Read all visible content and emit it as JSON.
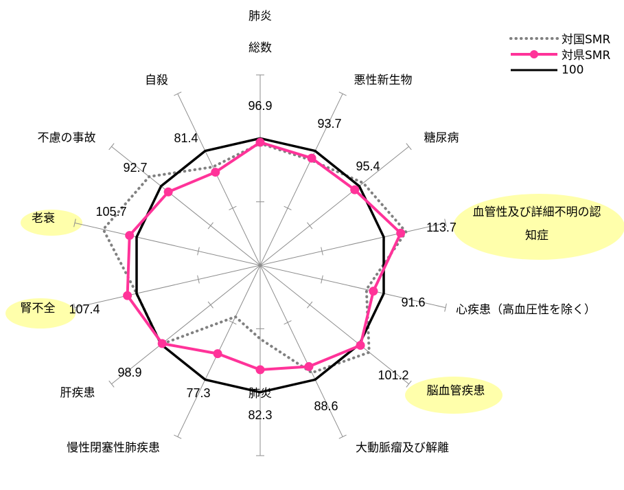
{
  "chart_data": {
    "type": "radar",
    "top_label": "肺炎",
    "categories": [
      "総数",
      "悪性新生物",
      "糖尿病",
      "血管性及び詳細不明の認知症",
      "心疾患（高血圧性を除く）",
      "脳血管疾患",
      "大動脈瘤及び解離",
      "肺炎",
      "慢性閉塞性肺疾患",
      "肝疾患",
      "腎不全",
      "老衰",
      "不慮の事故",
      "自殺"
    ],
    "category_lines": [
      [
        "総数"
      ],
      [
        "悪性新生物"
      ],
      [
        "糖尿病"
      ],
      [
        "血管性及び詳細不明の認",
        "知症"
      ],
      [
        "心疾患（高血圧性を除く）"
      ],
      [
        "脳血管疾患"
      ],
      [
        "大動脈瘤及び解離"
      ],
      [
        "肺炎"
      ],
      [
        "慢性閉塞性肺疾患"
      ],
      [
        "肝疾患"
      ],
      [
        "腎不全"
      ],
      [
        "老衰"
      ],
      [
        "不慮の事故"
      ],
      [
        "自殺"
      ]
    ],
    "highlighted": [
      "血管性及び詳細不明の認知症",
      "脳血管疾患",
      "腎不全",
      "老衰"
    ],
    "value_labels": [
      "96.9",
      "93.7",
      "95.4",
      "113.7",
      "91.6",
      "101.2",
      "88.6",
      "82.3",
      "77.3",
      "98.9",
      "107.4",
      "105.7",
      "92.7",
      "81.4"
    ],
    "range": [
      0,
      150
    ],
    "series": [
      {
        "name": "対国SMR",
        "style": "dotted",
        "color": "#808080",
        "values": [
          96,
          92,
          104,
          118,
          86,
          110,
          94,
          58,
          45,
          100,
          100,
          127,
          112,
          86
        ]
      },
      {
        "name": "対県SMR",
        "style": "marker",
        "color": "#ff3399",
        "values": [
          96.9,
          93.7,
          95.4,
          113.7,
          91.6,
          101.2,
          88.6,
          82.3,
          77.3,
          98.9,
          107.4,
          105.7,
          92.7,
          81.4
        ]
      },
      {
        "name": "100",
        "style": "solid",
        "color": "#000000",
        "values": [
          100,
          100,
          100,
          100,
          100,
          100,
          100,
          100,
          100,
          100,
          100,
          100,
          100,
          100
        ]
      }
    ]
  }
}
